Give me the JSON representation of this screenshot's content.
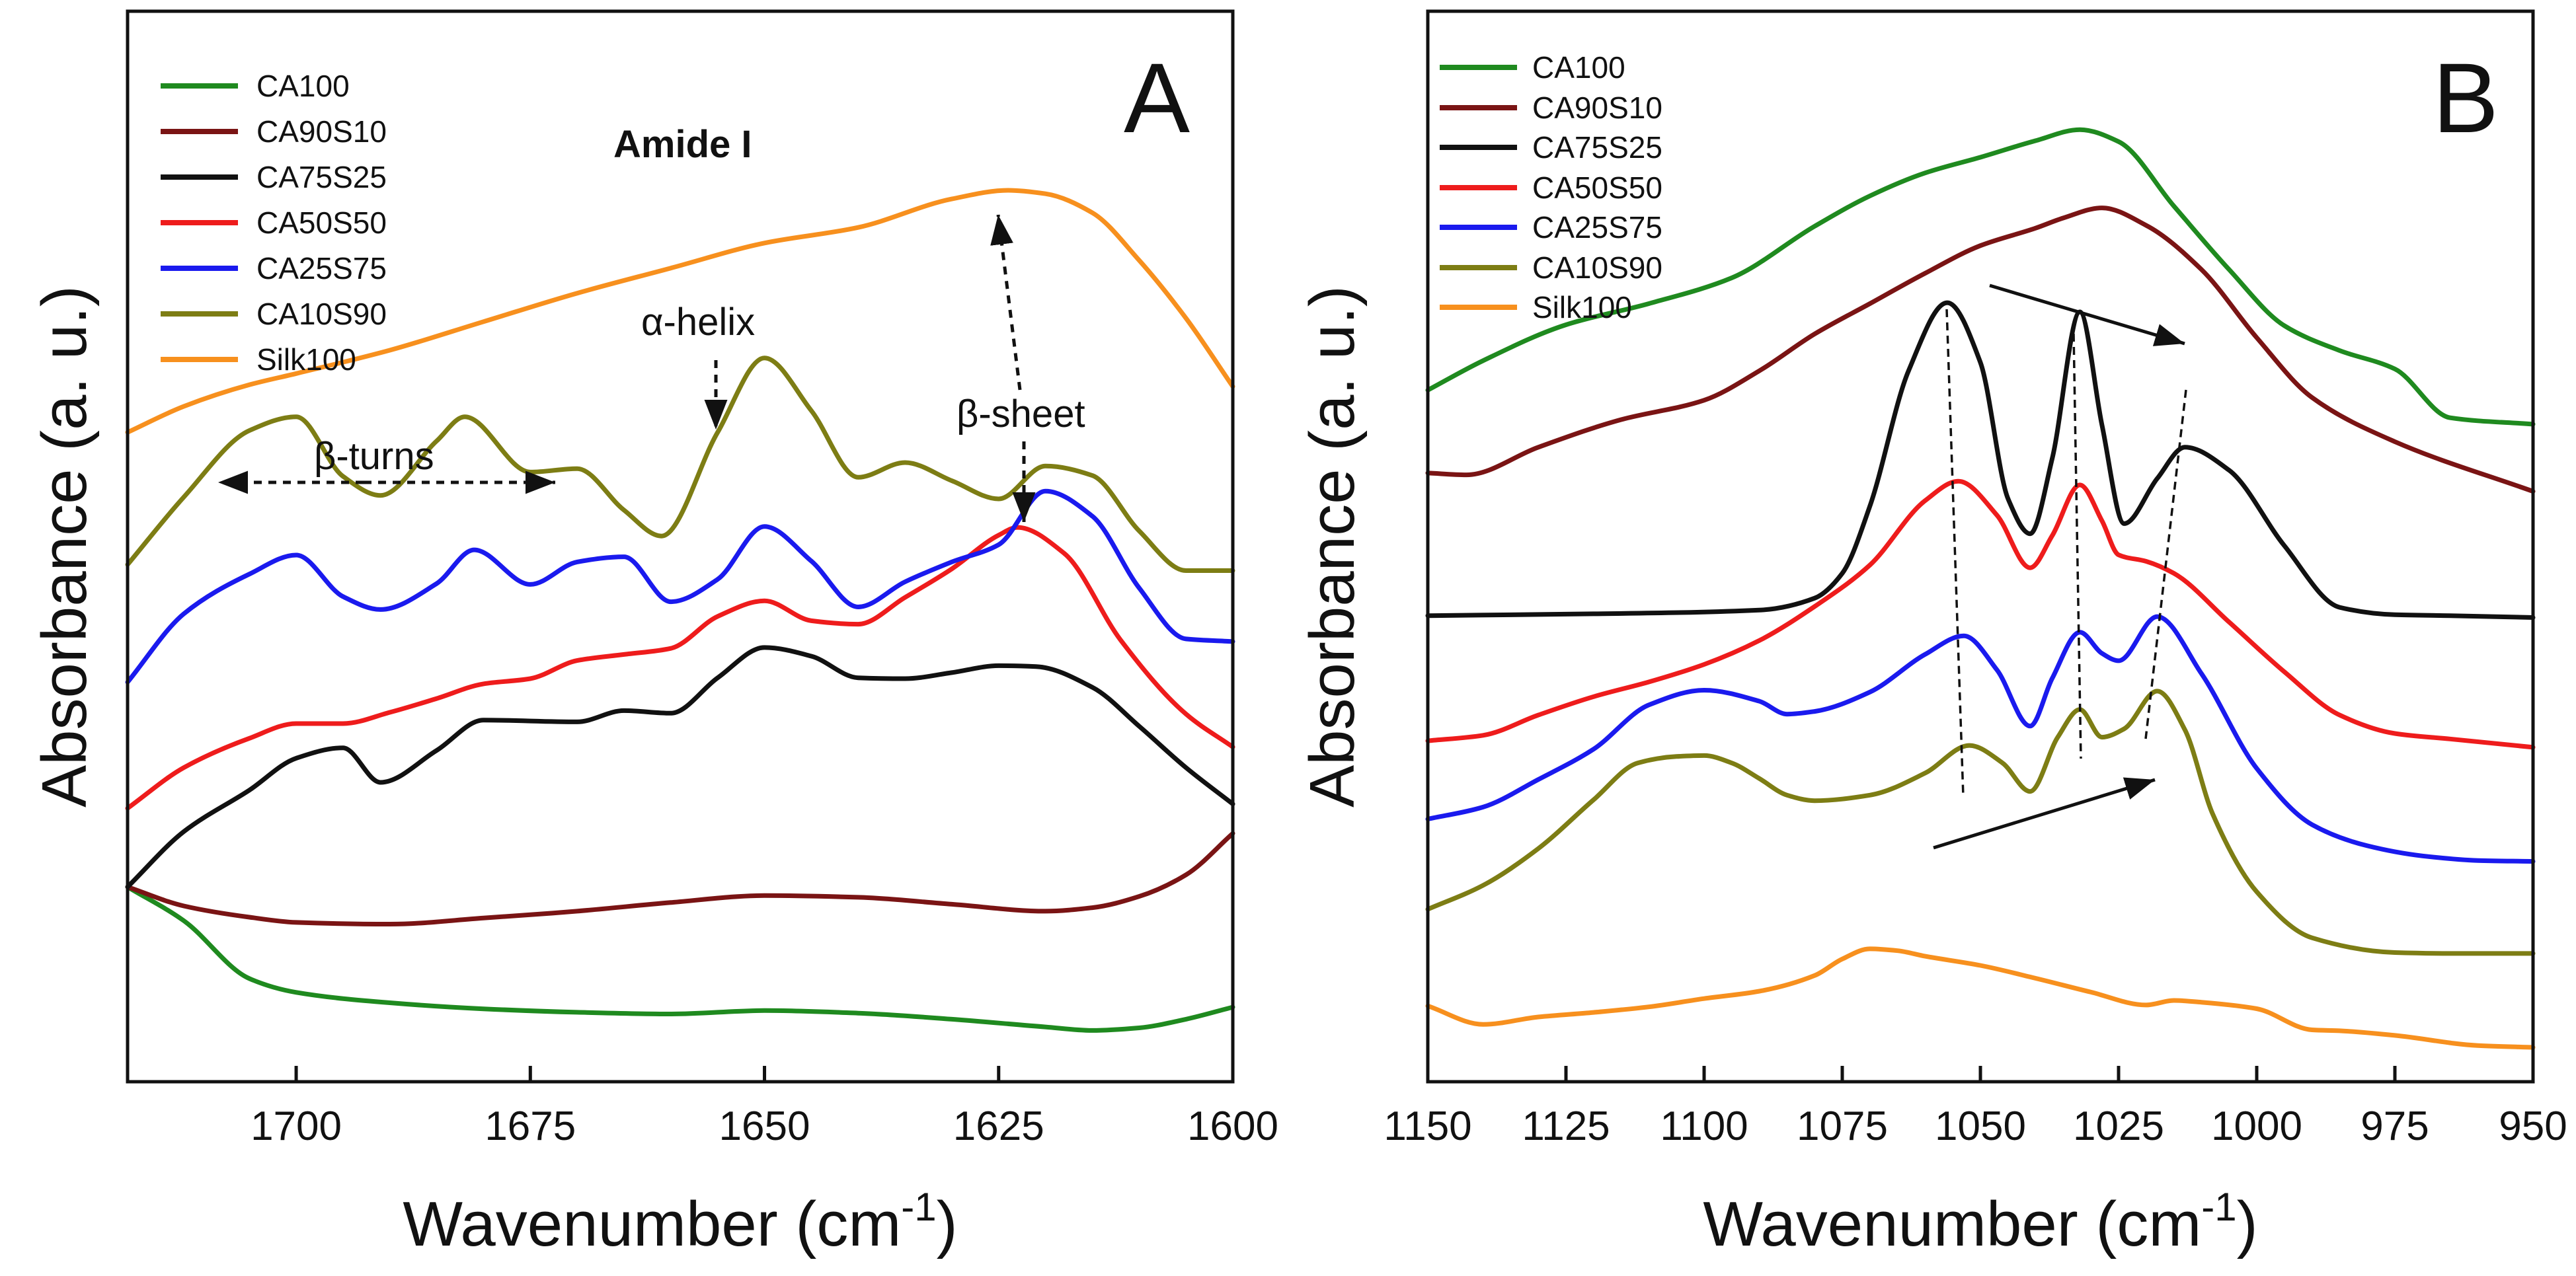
{
  "colors": {
    "CA100": "#1f8a1f",
    "CA90S10": "#7a1414",
    "CA75S25": "#111111",
    "CA50S50": "#ee1c1c",
    "CA25S75": "#1a1aee",
    "CA10S90": "#7d7d14",
    "Silk100": "#f7901e"
  },
  "chart_data": [
    {
      "type": "line",
      "panel": "A",
      "title": "Amide I",
      "xlabel": "Wavenumber (cm",
      "xlabel_sup": "-1",
      "xlabel_end": ")",
      "ylabel": "Absorbance (a. u.)",
      "xlim": [
        1718,
        1600
      ],
      "ylim": [
        0,
        100
      ],
      "xticks": [
        1700,
        1675,
        1650,
        1625,
        1600
      ],
      "annotations": {
        "beta_turns": "β-turns",
        "alpha_helix": "α-helix",
        "beta_sheet": "β-sheet"
      },
      "series": [
        {
          "name": "CA100",
          "x": [
            1718,
            1712,
            1705,
            1700,
            1690,
            1680,
            1670,
            1660,
            1650,
            1640,
            1630,
            1620,
            1615,
            1610,
            1605,
            1600
          ],
          "values": [
            19.4,
            15.5,
            8.8,
            7.2,
            6.0,
            5.3,
            4.9,
            4.7,
            5.1,
            4.8,
            4.1,
            3.2,
            2.8,
            3.1,
            4.1,
            5.5
          ]
        },
        {
          "name": "CA90S10",
          "x": [
            1718,
            1712,
            1705,
            1700,
            1690,
            1680,
            1670,
            1660,
            1650,
            1640,
            1630,
            1620,
            1615,
            1610,
            1605,
            1600
          ],
          "values": [
            19.4,
            17.2,
            15.9,
            15.3,
            15.1,
            15.8,
            16.6,
            17.6,
            18.4,
            18.2,
            17.4,
            16.6,
            17.0,
            18.3,
            20.8,
            25.6
          ]
        },
        {
          "name": "CA75S25",
          "x": [
            1718,
            1712,
            1705,
            1700,
            1695,
            1691,
            1685,
            1680,
            1670,
            1665,
            1660,
            1655,
            1650,
            1645,
            1640,
            1635,
            1630,
            1625,
            1621,
            1615,
            1610,
            1605,
            1600
          ],
          "values": [
            19.4,
            25.8,
            30.6,
            34.3,
            35.5,
            31.5,
            35.2,
            38.7,
            38.5,
            39.8,
            39.5,
            43.6,
            47.1,
            46.1,
            43.6,
            43.5,
            44.2,
            45.0,
            44.9,
            42.5,
            38.0,
            33.2,
            29.0
          ]
        },
        {
          "name": "CA50S50",
          "x": [
            1718,
            1712,
            1705,
            1700,
            1695,
            1690,
            1685,
            1680,
            1675,
            1670,
            1665,
            1660,
            1655,
            1650,
            1645,
            1640,
            1635,
            1630,
            1625,
            1623,
            1618,
            1612,
            1605,
            1600
          ],
          "values": [
            28.5,
            33.2,
            36.6,
            38.3,
            38.3,
            39.6,
            41.2,
            42.9,
            43.5,
            45.6,
            46.3,
            47.0,
            50.7,
            52.5,
            50.2,
            49.8,
            52.9,
            56.2,
            60.1,
            61.0,
            58.0,
            48.0,
            39.4,
            35.6
          ]
        },
        {
          "name": "CA25S75",
          "x": [
            1718,
            1712,
            1705,
            1700,
            1695,
            1691,
            1685,
            1681,
            1675,
            1670,
            1665,
            1660,
            1655,
            1650,
            1645,
            1640,
            1635,
            1630,
            1625,
            1620,
            1615,
            1610,
            1605,
            1600
          ],
          "values": [
            43.1,
            51.0,
            55.6,
            57.8,
            53.0,
            51.5,
            54.5,
            58.4,
            54.4,
            57.0,
            57.6,
            52.4,
            55.0,
            61.1,
            57.1,
            51.8,
            54.7,
            57.0,
            59.0,
            65.2,
            62.3,
            54.0,
            48.1,
            47.8
          ]
        },
        {
          "name": "CA10S90",
          "x": [
            1718,
            1712,
            1705,
            1700,
            1695,
            1691,
            1685,
            1682,
            1675,
            1670,
            1665,
            1661,
            1655,
            1650,
            1645,
            1640,
            1635,
            1630,
            1625,
            1620,
            1615,
            1610,
            1605,
            1600
          ],
          "values": [
            56.7,
            64.5,
            72.2,
            73.8,
            66.9,
            64.7,
            71.0,
            73.8,
            67.4,
            67.8,
            63.0,
            60.0,
            72.0,
            80.6,
            74.5,
            66.8,
            68.5,
            66.4,
            64.3,
            68.1,
            67.0,
            60.6,
            56.0,
            56.0
          ]
        },
        {
          "name": "Silk100",
          "x": [
            1718,
            1712,
            1705,
            1700,
            1690,
            1680,
            1670,
            1660,
            1650,
            1640,
            1630,
            1624,
            1620,
            1615,
            1610,
            1605,
            1600
          ],
          "values": [
            72.0,
            75.0,
            77.5,
            78.8,
            81.5,
            84.8,
            88.1,
            91.0,
            93.9,
            95.7,
            99.0,
            100.0,
            99.6,
            97.4,
            91.9,
            85.2,
            77.3
          ]
        }
      ]
    },
    {
      "type": "line",
      "panel": "B",
      "title": "",
      "xlabel": "Wavenumber (cm",
      "xlabel_sup": "-1",
      "xlabel_end": ")",
      "ylabel": "Absorbance (a. u.)",
      "xlim": [
        1150,
        950
      ],
      "ylim": [
        0,
        100
      ],
      "xticks": [
        1150,
        1125,
        1100,
        1075,
        1050,
        1025,
        1000,
        975,
        950
      ],
      "series": [
        {
          "name": "CA100",
          "x": [
            1150,
            1140,
            1125,
            1110,
            1095,
            1080,
            1070,
            1060,
            1050,
            1040,
            1032,
            1025,
            1015,
            1005,
            995,
            985,
            975,
            965,
            950
          ],
          "values": [
            71.4,
            74.6,
            78.5,
            80.8,
            83.6,
            89.2,
            92.5,
            95.0,
            96.7,
            98.5,
            99.7,
            98.4,
            91.4,
            84.5,
            78.4,
            75.7,
            73.7,
            68.4,
            67.7
          ]
        },
        {
          "name": "CA90S10",
          "x": [
            1150,
            1143,
            1130,
            1115,
            1100,
            1090,
            1080,
            1070,
            1060,
            1050,
            1040,
            1035,
            1028,
            1020,
            1010,
            1000,
            990,
            975,
            950
          ],
          "values": [
            62.4,
            62.2,
            65.2,
            68.2,
            70.3,
            73.5,
            77.5,
            80.8,
            84.1,
            87.1,
            89.0,
            90.1,
            91.2,
            89.3,
            84.5,
            77.1,
            70.6,
            65.8,
            60.4
          ]
        },
        {
          "name": "CA75S25",
          "x": [
            1150,
            1120,
            1090,
            1080,
            1075,
            1070,
            1063,
            1056,
            1050,
            1045,
            1041,
            1037,
            1032,
            1028,
            1024,
            1018,
            1013,
            1005,
            995,
            985,
            975,
            965,
            950
          ],
          "values": [
            46.9,
            47.1,
            47.5,
            48.8,
            51.5,
            58.8,
            73.5,
            80.9,
            74.4,
            59.6,
            55.8,
            64.0,
            79.9,
            67.6,
            56.9,
            61.8,
            65.2,
            62.7,
            54.5,
            47.8,
            47.0,
            46.9,
            46.7
          ]
        },
        {
          "name": "CA50S50",
          "x": [
            1150,
            1140,
            1130,
            1120,
            1110,
            1100,
            1090,
            1080,
            1070,
            1060,
            1054,
            1047,
            1041,
            1037,
            1032,
            1028,
            1025,
            1020,
            1015,
            1005,
            995,
            985,
            975,
            965,
            950
          ],
          "values": [
            33.3,
            33.9,
            36.1,
            38.1,
            39.7,
            41.6,
            44.2,
            47.9,
            52.4,
            59.4,
            61.5,
            57.8,
            52.1,
            55.6,
            61.1,
            57.2,
            53.5,
            52.8,
            51.5,
            46.2,
            40.8,
            36.1,
            34.1,
            33.5,
            32.6
          ]
        },
        {
          "name": "CA25S75",
          "x": [
            1150,
            1140,
            1130,
            1120,
            1110,
            1100,
            1090,
            1085,
            1080,
            1070,
            1060,
            1053,
            1047,
            1041,
            1037,
            1032,
            1028,
            1025,
            1018,
            1010,
            1000,
            990,
            980,
            970,
            960,
            950
          ],
          "values": [
            24.8,
            26.1,
            29.1,
            32.4,
            37.2,
            38.8,
            37.6,
            36.2,
            36.5,
            38.6,
            42.7,
            44.7,
            41.0,
            34.9,
            40.1,
            45.1,
            42.8,
            42.0,
            46.8,
            40.6,
            30.3,
            24.2,
            21.9,
            20.8,
            20.3,
            20.2
          ]
        },
        {
          "name": "CA10S90",
          "x": [
            1150,
            1140,
            1130,
            1120,
            1112,
            1105,
            1100,
            1095,
            1090,
            1085,
            1080,
            1070,
            1060,
            1052,
            1046,
            1041,
            1036,
            1032,
            1028,
            1024,
            1018,
            1013,
            1008,
            1000,
            990,
            975,
            965,
            950
          ],
          "values": [
            15.0,
            17.6,
            21.6,
            26.9,
            30.9,
            31.6,
            31.7,
            30.9,
            29.2,
            27.4,
            26.8,
            27.4,
            29.8,
            32.8,
            30.9,
            27.8,
            33.7,
            36.7,
            33.7,
            34.6,
            38.7,
            34.5,
            25.4,
            16.9,
            11.9,
            10.3,
            10.2,
            10.2
          ]
        },
        {
          "name": "Silk100",
          "x": [
            1150,
            1140,
            1130,
            1120,
            1110,
            1100,
            1090,
            1080,
            1075,
            1070,
            1065,
            1060,
            1050,
            1040,
            1030,
            1020,
            1015,
            1010,
            1000,
            990,
            985,
            975,
            960,
            950
          ],
          "values": [
            4.5,
            2.5,
            3.3,
            3.8,
            4.4,
            5.3,
            6.1,
            7.8,
            9.6,
            10.7,
            10.5,
            9.9,
            8.9,
            7.5,
            6.0,
            4.6,
            5.1,
            4.9,
            4.2,
            1.9,
            1.8,
            1.3,
            0.2,
            0.0
          ]
        }
      ]
    }
  ]
}
